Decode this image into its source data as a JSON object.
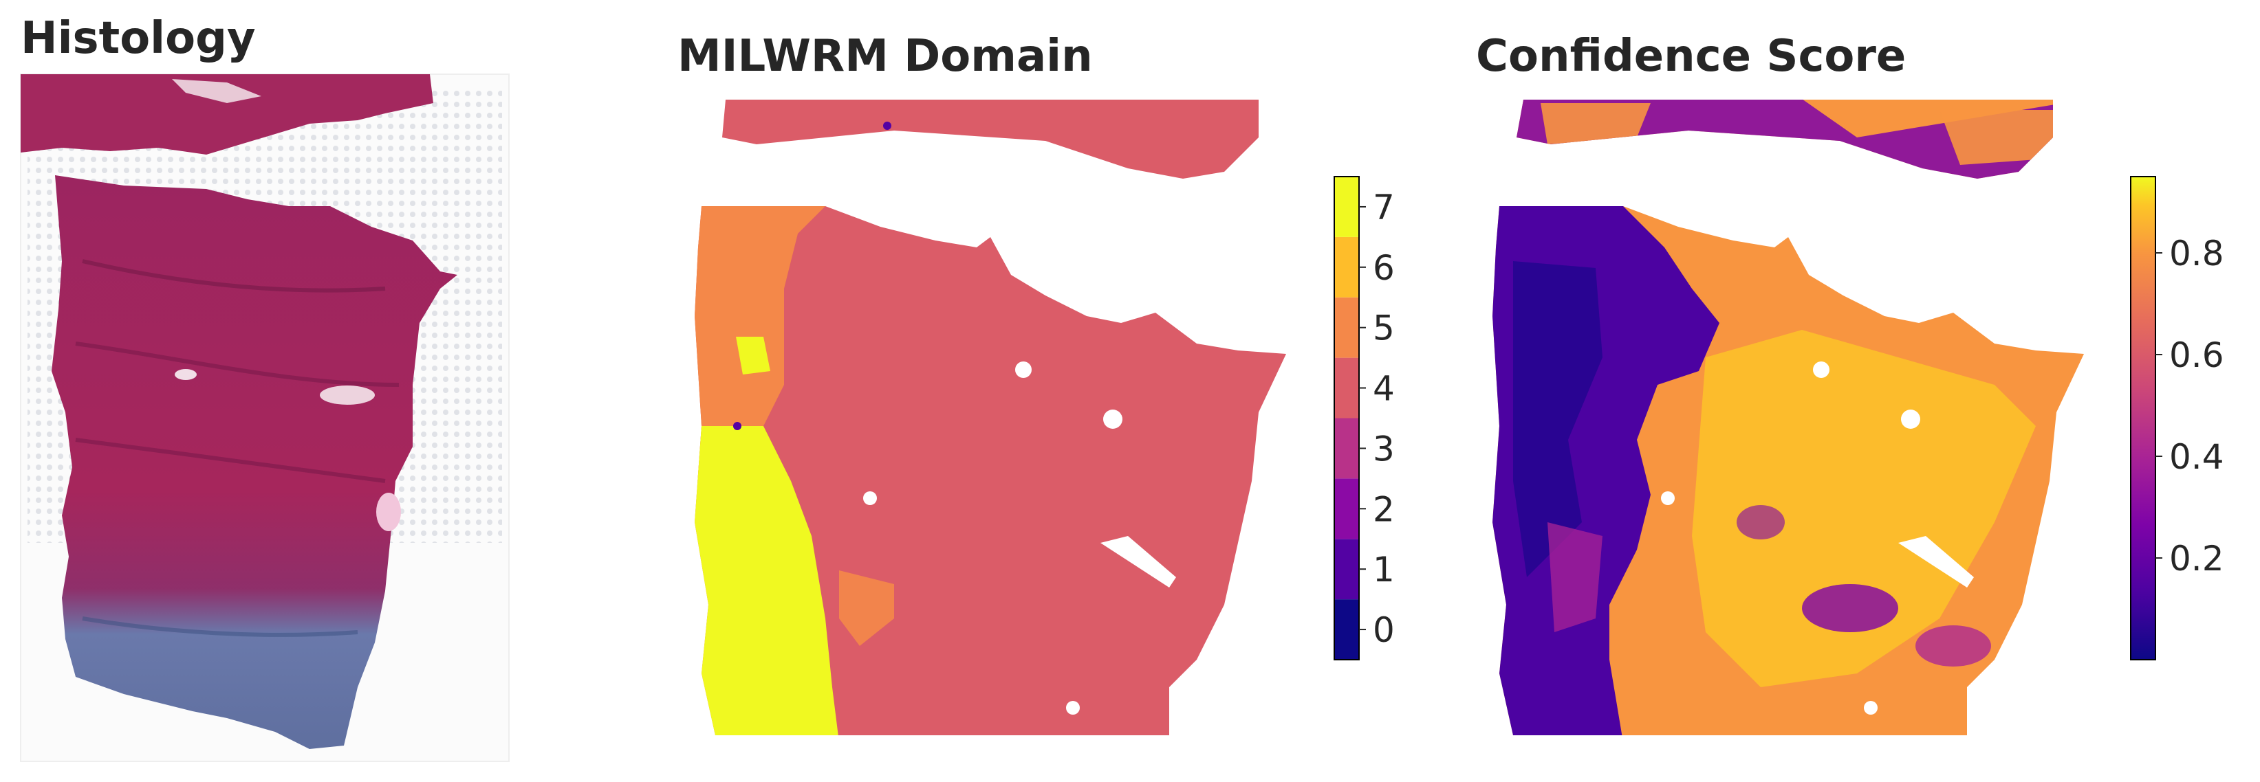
{
  "panels": {
    "histology": {
      "title": "Histology"
    },
    "domain": {
      "title": "MILWRM Domain"
    },
    "confidence": {
      "title": "Confidence Score"
    }
  },
  "colors": {
    "domain_4": "#dc5b65",
    "domain_5": "#f3854b",
    "domain_7": "#eff921",
    "tissue_pink": "#a6265c",
    "tissue_blue": "#6a79ab",
    "background": "#ffffff"
  },
  "chart_data": [
    {
      "type": "heatmap",
      "title": "MILWRM Domain",
      "colormap": "plasma (discrete, 8 levels)",
      "colorbar": {
        "ticks": [
          0,
          1,
          2,
          3,
          4,
          5,
          6,
          7
        ],
        "range": [
          -0.5,
          7.5
        ],
        "levels": [
          {
            "value": 0,
            "color": "#0d0887"
          },
          {
            "value": 1,
            "color": "#5302a3"
          },
          {
            "value": 2,
            "color": "#8b0aa5"
          },
          {
            "value": 3,
            "color": "#b83289"
          },
          {
            "value": 4,
            "color": "#db5c68"
          },
          {
            "value": 5,
            "color": "#f48849"
          },
          {
            "value": 6,
            "color": "#febd2a"
          },
          {
            "value": 7,
            "color": "#f0f921"
          }
        ]
      },
      "dominant_domains": [
        4,
        5,
        7
      ]
    },
    {
      "type": "heatmap",
      "title": "Confidence Score",
      "colormap": "plasma (continuous)",
      "colorbar": {
        "ticks": [
          0.2,
          0.4,
          0.6,
          0.8
        ],
        "range": [
          0.0,
          0.95
        ]
      }
    }
  ]
}
